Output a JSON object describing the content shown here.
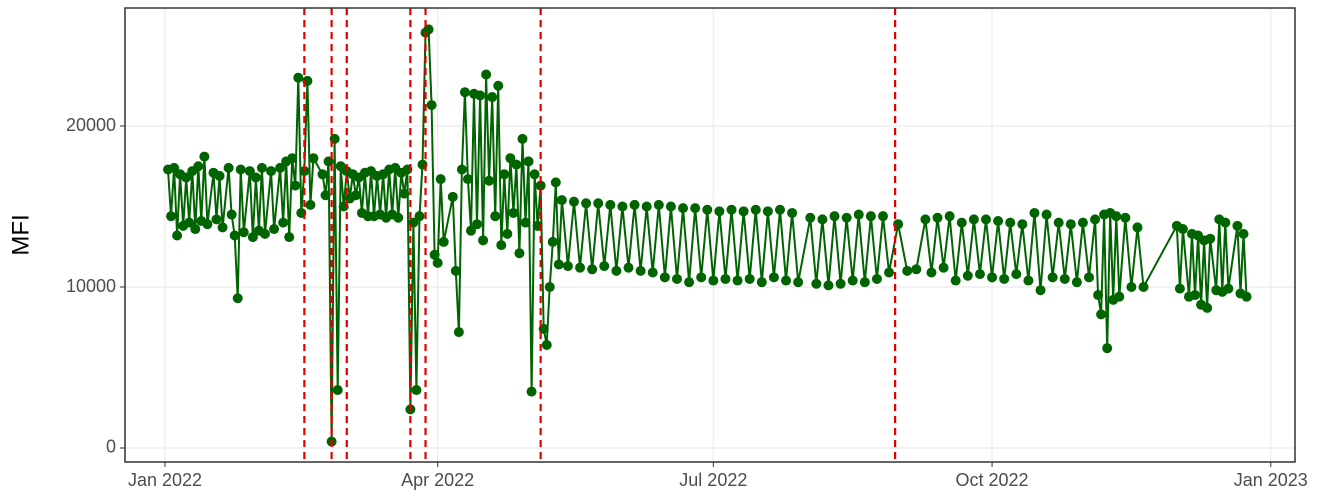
{
  "chart_data": {
    "type": "line",
    "y_label": "MFI",
    "color": "#006400",
    "grid": true,
    "xlim": [
      -13.2,
      373
    ],
    "ylim": [
      -870,
      27330
    ],
    "xticks": [
      {
        "value": 0,
        "label": "Jan 2022"
      },
      {
        "value": 90,
        "label": "Apr 2022"
      },
      {
        "value": 181,
        "label": "Jul 2022"
      },
      {
        "value": 273,
        "label": "Oct 2022"
      },
      {
        "value": 365,
        "label": "Jan 2023"
      }
    ],
    "yticks": [
      0,
      10000,
      20000
    ],
    "vlines": [
      46,
      55,
      60,
      81,
      86,
      124,
      241
    ],
    "vline_color": "#e00000",
    "x": [
      1,
      2,
      3,
      4,
      5,
      6,
      7,
      8,
      9,
      10,
      11,
      12,
      13,
      14,
      16,
      17,
      18,
      19,
      21,
      22,
      23,
      24,
      25,
      26,
      28,
      29,
      30,
      31,
      32,
      33,
      35,
      36,
      38,
      39,
      40,
      41,
      42,
      43,
      44,
      45,
      46,
      47,
      48,
      49,
      52,
      53,
      54,
      55,
      56,
      57,
      58,
      59,
      60,
      61,
      62,
      63,
      64,
      65,
      66,
      67,
      68,
      69,
      70,
      71,
      72,
      73,
      74,
      75,
      76,
      77,
      78,
      79,
      80,
      81,
      82,
      83,
      84,
      85,
      86,
      87,
      88,
      89,
      90,
      91,
      92,
      95,
      96,
      97,
      98,
      99,
      100,
      101,
      102,
      103,
      104,
      105,
      106,
      107,
      108,
      109,
      110,
      111,
      112,
      113,
      114,
      115,
      116,
      117,
      118,
      119,
      120,
      121,
      122,
      123,
      124,
      125,
      126,
      127,
      128,
      129,
      130,
      131,
      133,
      135,
      137,
      139,
      141,
      143,
      145,
      147,
      149,
      151,
      153,
      155,
      157,
      159,
      161,
      163,
      165,
      167,
      169,
      171,
      173,
      175,
      177,
      179,
      181,
      183,
      185,
      187,
      189,
      191,
      193,
      195,
      197,
      199,
      201,
      203,
      205,
      207,
      209,
      213,
      215,
      217,
      219,
      221,
      223,
      225,
      227,
      229,
      231,
      233,
      235,
      237,
      239,
      242,
      245,
      248,
      251,
      253,
      255,
      257,
      259,
      261,
      263,
      265,
      267,
      269,
      271,
      273,
      275,
      277,
      279,
      281,
      283,
      285,
      287,
      289,
      291,
      293,
      295,
      297,
      299,
      301,
      303,
      305,
      307,
      308,
      309,
      310,
      311,
      312,
      313,
      314,
      315,
      317,
      319,
      321,
      323,
      334,
      335,
      336,
      338,
      339,
      340,
      341,
      342,
      343,
      344,
      345,
      347,
      348,
      349,
      350,
      351,
      354,
      355,
      356,
      357
    ],
    "values": [
      17300,
      14400,
      17400,
      13200,
      17000,
      13800,
      16800,
      14000,
      17200,
      13600,
      17500,
      14100,
      18100,
      13900,
      17100,
      14200,
      16900,
      13700,
      17400,
      14500,
      13200,
      9300,
      17300,
      13400,
      17200,
      13100,
      16800,
      13500,
      17400,
      13300,
      17200,
      13600,
      17400,
      14000,
      17800,
      13100,
      18000,
      16300,
      23000,
      14600,
      17200,
      22800,
      15100,
      18000,
      17000,
      15700,
      17800,
      400,
      19200,
      3600,
      17500,
      15000,
      17200,
      15500,
      17000,
      15700,
      16800,
      14600,
      17100,
      14400,
      17200,
      14400,
      16900,
      14500,
      17000,
      14300,
      17300,
      14500,
      17400,
      14300,
      17100,
      15800,
      17300,
      2400,
      14000,
      3600,
      14400,
      17600,
      25800,
      26000,
      21300,
      12000,
      11500,
      16700,
      12800,
      15600,
      11000,
      7200,
      17300,
      22100,
      16700,
      13500,
      22000,
      13900,
      21900,
      12900,
      23200,
      16600,
      21800,
      14400,
      22500,
      12600,
      17000,
      13300,
      18000,
      14600,
      17600,
      12100,
      19200,
      14000,
      17800,
      3500,
      17000,
      13800,
      16300,
      7400,
      6400,
      10000,
      12800,
      16500,
      11400,
      15400,
      11300,
      15300,
      11200,
      15200,
      11100,
      15200,
      11300,
      15100,
      11000,
      15000,
      11200,
      15100,
      11000,
      15000,
      10900,
      15100,
      10600,
      15000,
      10500,
      14900,
      10300,
      14900,
      10600,
      14800,
      10400,
      14700,
      10500,
      14800,
      10400,
      14700,
      10500,
      14800,
      10300,
      14700,
      10600,
      14800,
      10400,
      14600,
      10300,
      14300,
      10200,
      14200,
      10100,
      14400,
      10200,
      14300,
      10400,
      14500,
      10300,
      14400,
      10500,
      14400,
      10900,
      13900,
      11000,
      11100,
      14200,
      10900,
      14300,
      11200,
      14400,
      10400,
      14000,
      10700,
      14200,
      10800,
      14200,
      10600,
      14100,
      10500,
      14000,
      10800,
      13900,
      10400,
      14600,
      9800,
      14500,
      10600,
      14000,
      10500,
      13900,
      10300,
      14000,
      10600,
      14200,
      9500,
      8300,
      14500,
      6200,
      14600,
      9200,
      14400,
      9400,
      14300,
      10000,
      13700,
      10000,
      13800,
      9900,
      13600,
      9400,
      13300,
      9500,
      13200,
      8900,
      12900,
      8700,
      13000,
      9800,
      14200,
      9700,
      14000,
      9900,
      13800,
      9600,
      13300,
      9400
    ]
  }
}
